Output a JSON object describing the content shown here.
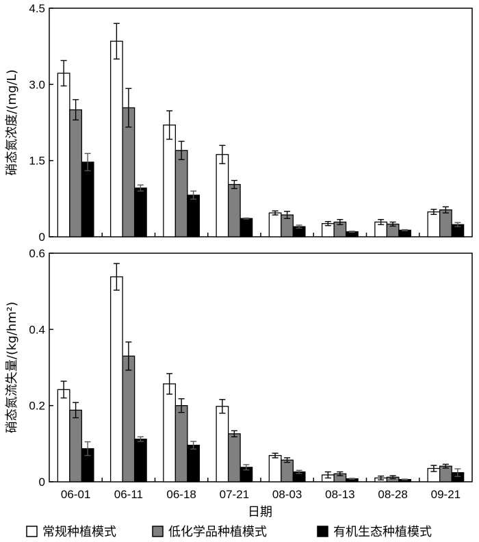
{
  "chart_data": [
    {
      "type": "bar",
      "categories": [
        "06-01",
        "06-11",
        "06-18",
        "07-21",
        "08-03",
        "08-13",
        "08-28",
        "09-21"
      ],
      "ylabel": "硝态氮浓度/(mg/L)",
      "xlabel": "",
      "ylim": [
        0,
        4.5
      ],
      "yticks": [
        "0",
        "1.5",
        "3.0",
        "4.5"
      ],
      "ytick_values": [
        0,
        1.5,
        3.0,
        4.5
      ],
      "grid": false,
      "series": [
        {
          "name": "常规种植模式",
          "color": "#ffffff",
          "values": [
            3.22,
            3.85,
            2.2,
            1.62,
            0.47,
            0.26,
            0.29,
            0.49
          ],
          "errors": [
            0.25,
            0.35,
            0.28,
            0.18,
            0.04,
            0.04,
            0.05,
            0.05
          ]
        },
        {
          "name": "低化学品种植模式",
          "color": "#808080",
          "values": [
            2.5,
            2.54,
            1.7,
            1.03,
            0.43,
            0.29,
            0.25,
            0.53
          ],
          "errors": [
            0.2,
            0.38,
            0.18,
            0.08,
            0.07,
            0.05,
            0.04,
            0.06
          ]
        },
        {
          "name": "有机生态种植模式",
          "color": "#000000",
          "values": [
            1.47,
            0.96,
            0.82,
            0.36,
            0.2,
            0.1,
            0.13,
            0.24
          ],
          "errors": [
            0.17,
            0.06,
            0.08,
            0.01,
            0.03,
            0.01,
            0.01,
            0.04
          ]
        }
      ]
    },
    {
      "type": "bar",
      "categories": [
        "06-01",
        "06-11",
        "06-18",
        "07-21",
        "08-03",
        "08-13",
        "08-28",
        "09-21"
      ],
      "ylabel": "硝态氮流失量/(kg/hm²)",
      "xlabel": "日期",
      "ylim": [
        0,
        0.6
      ],
      "yticks": [
        "0",
        "0.2",
        "0.4",
        "0.6"
      ],
      "ytick_values": [
        0,
        0.2,
        0.4,
        0.6
      ],
      "grid": false,
      "series": [
        {
          "name": "常规种植模式",
          "color": "#ffffff",
          "values": [
            0.242,
            0.538,
            0.257,
            0.198,
            0.069,
            0.018,
            0.01,
            0.035
          ],
          "errors": [
            0.022,
            0.035,
            0.027,
            0.018,
            0.006,
            0.008,
            0.005,
            0.008
          ]
        },
        {
          "name": "低化学品种植模式",
          "color": "#808080",
          "values": [
            0.188,
            0.33,
            0.2,
            0.126,
            0.057,
            0.021,
            0.012,
            0.041
          ],
          "errors": [
            0.02,
            0.037,
            0.018,
            0.008,
            0.006,
            0.005,
            0.004,
            0.005
          ]
        },
        {
          "name": "有机生态种植模式",
          "color": "#000000",
          "values": [
            0.087,
            0.112,
            0.096,
            0.038,
            0.026,
            0.008,
            0.006,
            0.024
          ],
          "errors": [
            0.018,
            0.006,
            0.01,
            0.007,
            0.004,
            0.001,
            0.001,
            0.01
          ]
        }
      ]
    }
  ],
  "legend": {
    "placement": "bottom",
    "items": [
      {
        "label": "常规种植模式",
        "color": "#ffffff"
      },
      {
        "label": "低化学品种植模式",
        "color": "#808080"
      },
      {
        "label": "有机生态种植模式",
        "color": "#000000"
      }
    ]
  }
}
